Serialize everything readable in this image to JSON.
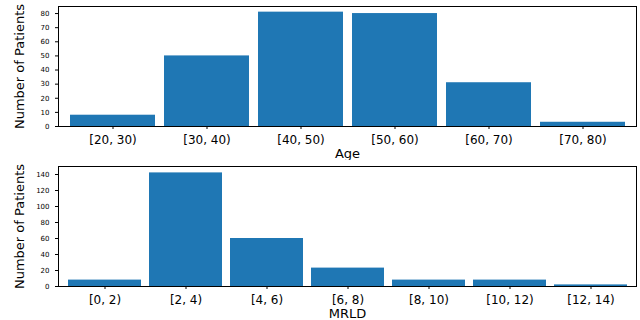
{
  "chart_data": [
    {
      "type": "bar",
      "x_label": "Age",
      "y_label": "Number of Patients",
      "categories": [
        "[20, 30)",
        "[30, 40)",
        "[40, 50)",
        "[50, 60)",
        "[60, 70)",
        "[70, 80)"
      ],
      "values": [
        8,
        50,
        81,
        80,
        31,
        3
      ],
      "color": "#1f77b4",
      "ylim": [
        0,
        85
      ],
      "yticks": [
        0,
        10,
        20,
        30,
        40,
        50,
        60,
        70,
        80
      ],
      "grid": false
    },
    {
      "type": "bar",
      "x_label": "MRLD",
      "y_label": "Number of Patients",
      "categories": [
        "[0, 2)",
        "[2, 4)",
        "[4, 6)",
        "[6, 8)",
        "[8, 10)",
        "[10, 12)",
        "[12, 14)"
      ],
      "values": [
        8,
        142,
        60,
        23,
        8,
        8,
        2
      ],
      "color": "#1f77b4",
      "ylim": [
        0,
        150
      ],
      "yticks": [
        0,
        20,
        40,
        60,
        80,
        100,
        120,
        140
      ],
      "grid": false
    }
  ]
}
